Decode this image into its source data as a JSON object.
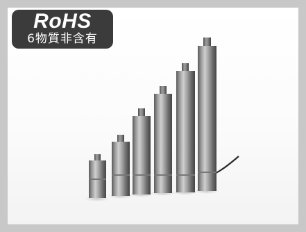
{
  "badge": {
    "title": "RoHS",
    "subtitle": "6物質非含有"
  },
  "colors": {
    "frame": "#c8c8c8",
    "badge_bg": "#3b3b3b",
    "metal_light": "#bdbdbd",
    "metal_dark": "#4a4a4a",
    "cable": "#2a2a2a"
  },
  "product": {
    "image_subject": "sensor-rods",
    "rod_count": 6
  }
}
